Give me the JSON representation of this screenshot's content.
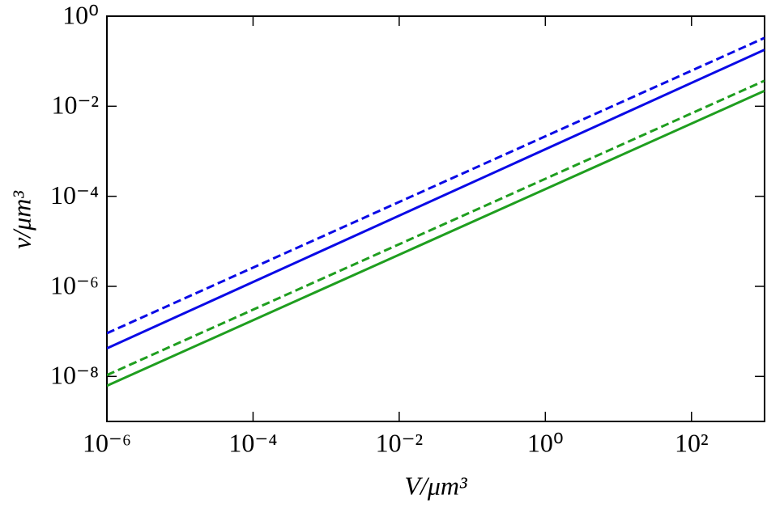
{
  "chart_data": {
    "type": "line",
    "xlabel": "V/μm³",
    "ylabel": "ν/μm³",
    "xscale": "log",
    "yscale": "log",
    "x": [
      1e-06,
      1000
    ],
    "series": [
      {
        "color": "#0a0ae6",
        "dash": true,
        "values": [
          9.1e-08,
          0.33
        ]
      },
      {
        "color": "#0a0ae6",
        "dash": false,
        "values": [
          4.2e-08,
          0.18
        ]
      },
      {
        "color": "#1f9e1f",
        "dash": true,
        "values": [
          1.07e-08,
          0.037
        ]
      },
      {
        "color": "#1f9e1f",
        "dash": false,
        "values": [
          6.2e-09,
          0.022
        ]
      }
    ],
    "xlim": [
      1e-06,
      1000
    ],
    "ylim": [
      1e-09,
      1
    ],
    "xticks": [
      {
        "value": 1e-06,
        "label": "10⁻⁶"
      },
      {
        "value": 0.0001,
        "label": "10⁻⁴"
      },
      {
        "value": 0.01,
        "label": "10⁻²"
      },
      {
        "value": 1,
        "label": "10⁰"
      },
      {
        "value": 100,
        "label": "10²"
      }
    ],
    "yticks": [
      {
        "value": 1e-08,
        "label": "10⁻⁸"
      },
      {
        "value": 1e-06,
        "label": "10⁻⁶"
      },
      {
        "value": 0.0001,
        "label": "10⁻⁴"
      },
      {
        "value": 0.01,
        "label": "10⁻²"
      },
      {
        "value": 1,
        "label": "10⁰"
      }
    ],
    "grid": false
  }
}
